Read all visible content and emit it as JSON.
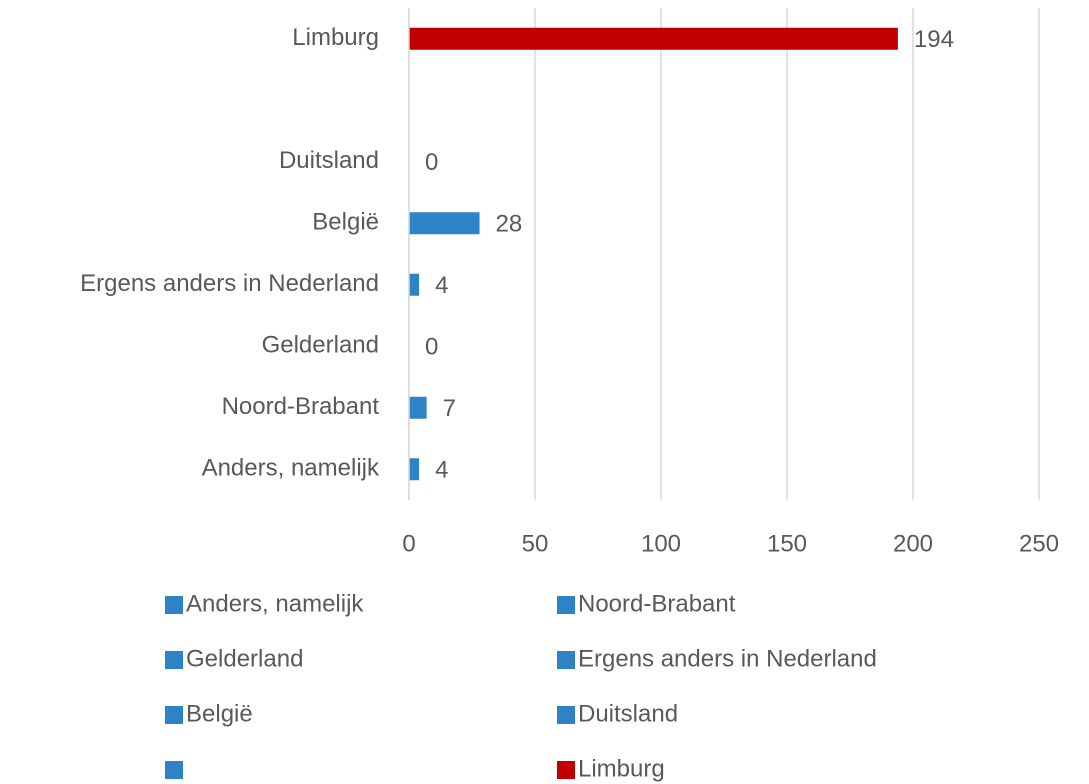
{
  "chart_data": {
    "type": "bar",
    "orientation": "horizontal",
    "categories": [
      "Anders, namelijk",
      "Noord-Brabant",
      "Gelderland",
      "Ergens anders in Nederland",
      "België",
      "Duitsland",
      null,
      "Limburg"
    ],
    "values": [
      4,
      7,
      0,
      4,
      28,
      0,
      null,
      194
    ],
    "colors": [
      "#2e83c6",
      "#2e83c6",
      "#2e83c6",
      "#2e83c6",
      "#2e83c6",
      "#2e83c6",
      "#2e83c6",
      "#c00000"
    ],
    "xlim": [
      0,
      250
    ],
    "xticks": [
      0,
      50,
      100,
      150,
      200,
      250
    ],
    "grid": true,
    "legend": "bottom"
  }
}
